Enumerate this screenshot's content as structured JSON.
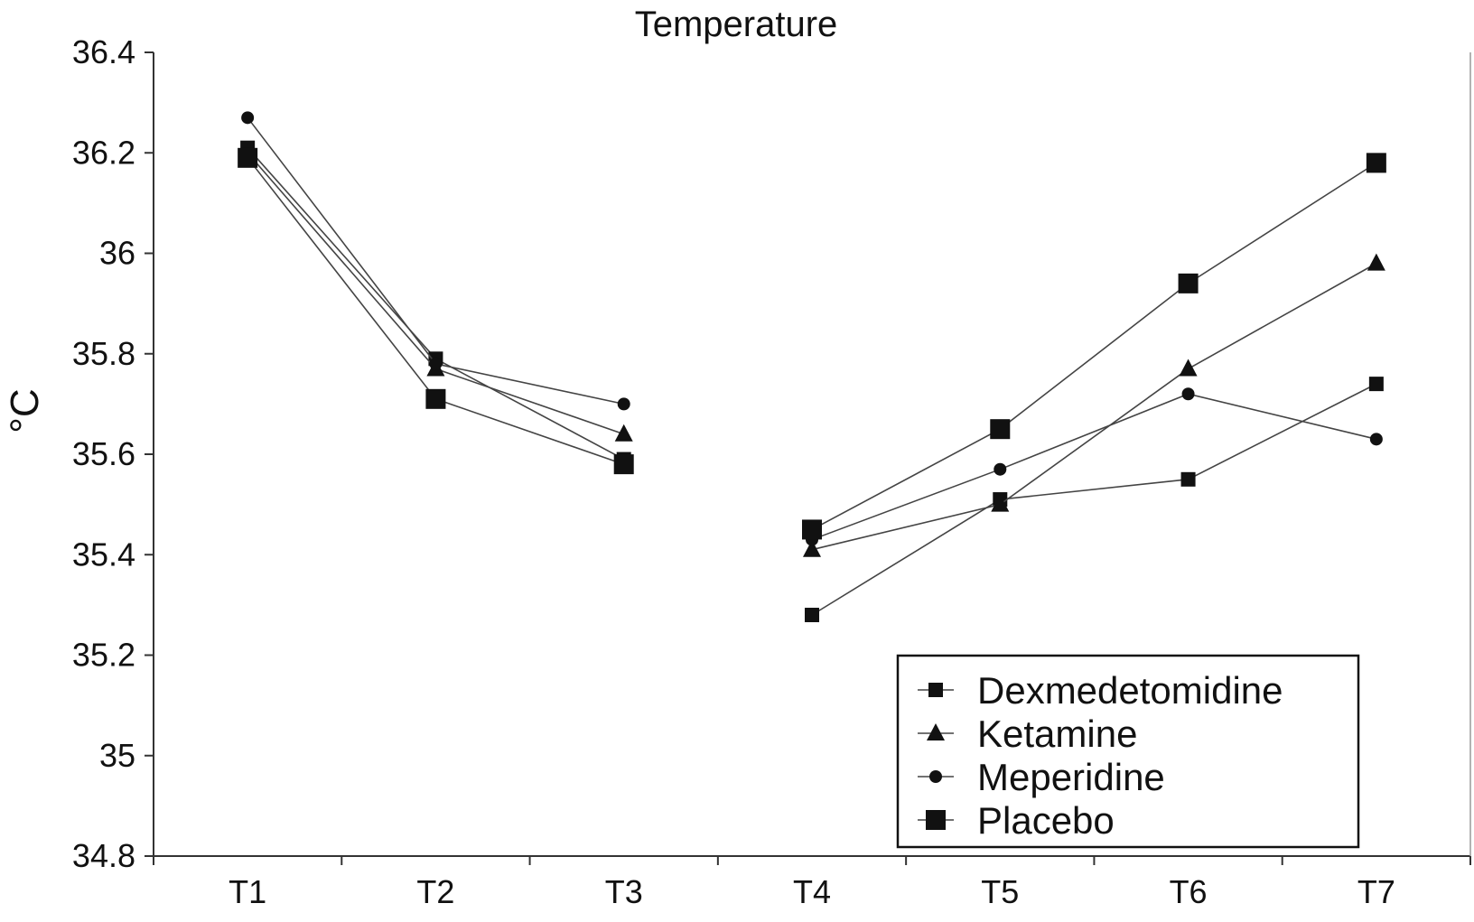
{
  "chart_data": {
    "type": "line",
    "title": "Temperature",
    "xlabel": "",
    "ylabel": "°C",
    "categories": [
      "T1",
      "T2",
      "T3",
      "T4",
      "T5",
      "T6",
      "T7"
    ],
    "ylim": [
      34.8,
      36.4
    ],
    "yticks": [
      "34.8",
      "35",
      "35.2",
      "35.4",
      "35.6",
      "35.8",
      "36",
      "36.2",
      "36.4"
    ],
    "grid": false,
    "legend_position": "bottom-right",
    "series": [
      {
        "name": "Dexmedetomidine",
        "marker": "square-small",
        "values": [
          36.21,
          35.79,
          35.59,
          35.28,
          35.51,
          35.55,
          35.74
        ]
      },
      {
        "name": "Ketamine",
        "marker": "triangle",
        "values": [
          36.2,
          35.77,
          35.64,
          35.41,
          35.5,
          35.77,
          35.98
        ]
      },
      {
        "name": "Meperidine",
        "marker": "circle",
        "values": [
          36.27,
          35.78,
          35.7,
          35.43,
          35.57,
          35.72,
          35.63
        ]
      },
      {
        "name": "Placebo",
        "marker": "square-large",
        "values": [
          36.19,
          35.71,
          35.58,
          35.45,
          35.65,
          35.94,
          36.18
        ]
      }
    ],
    "colors": {
      "line": "#444444",
      "marker": "#111111",
      "axis": "#333333"
    }
  }
}
